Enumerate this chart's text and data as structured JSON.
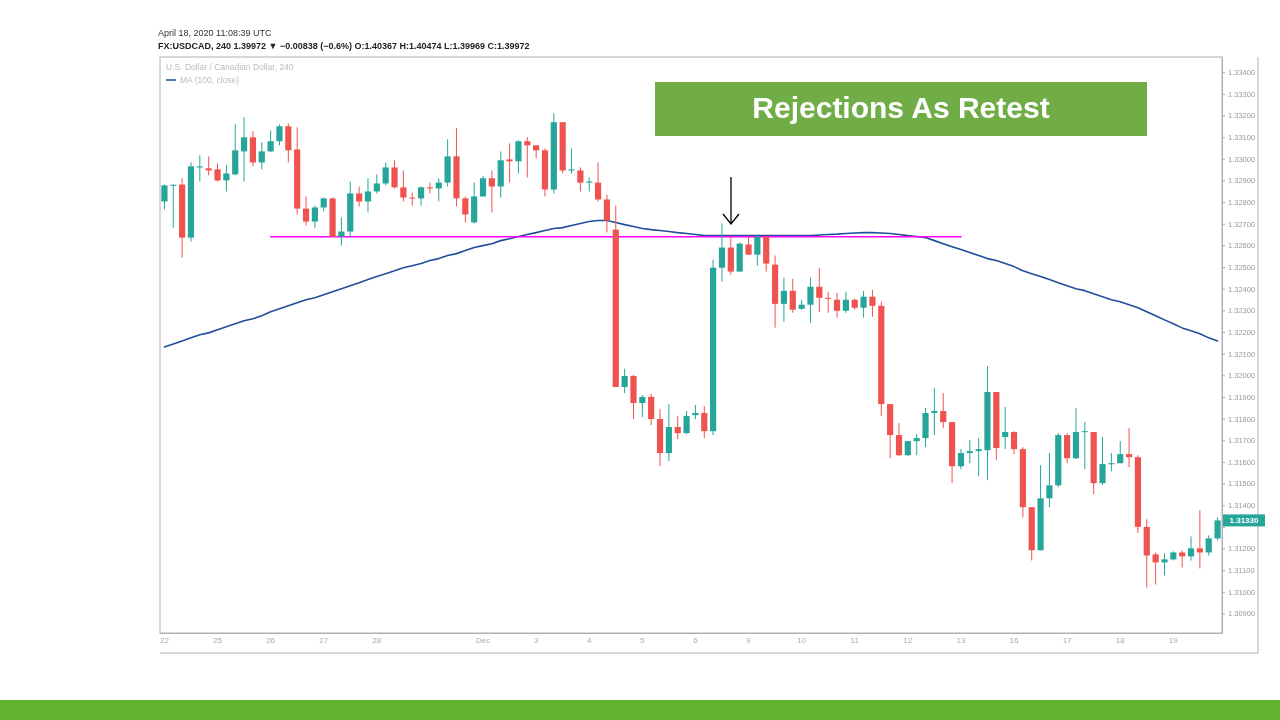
{
  "chart_data": {
    "type": "candlestick",
    "title": "Rejections As Retest",
    "subtitle": "FX:USDCAD, 240 1.39972 ▼ −0.00838 (−0.6%) O:1.40367 H:1.40474 L:1.39969 C:1.39972",
    "annotations": [
      "April 18, 2020 11:08:39 UTC",
      "U.S. Dollar / Canadian Dollar, 240",
      "1.31330"
    ],
    "categories": [
      "22",
      null,
      null,
      null,
      null,
      null,
      "25",
      null,
      null,
      null,
      null,
      null,
      "26",
      null,
      null,
      null,
      null,
      null,
      "27",
      null,
      null,
      null,
      null,
      null,
      "28",
      null,
      null,
      null,
      null,
      null,
      null,
      null,
      null,
      null,
      null,
      null,
      "Dec",
      null,
      null,
      null,
      null,
      null,
      "3",
      null,
      null,
      null,
      null,
      null,
      "4",
      null,
      null,
      null,
      null,
      null,
      "5",
      null,
      null,
      null,
      null,
      null,
      "6",
      null,
      null,
      null,
      null,
      null,
      "9",
      null,
      null,
      null,
      null,
      null,
      "10",
      null,
      null,
      null,
      null,
      null,
      "11",
      null,
      null,
      null,
      null,
      null,
      "12",
      null,
      null,
      null,
      null,
      null,
      "13",
      null,
      null,
      null,
      null,
      null,
      "16",
      null,
      null,
      null,
      null,
      null,
      "17",
      null,
      null,
      null,
      null,
      null,
      "18",
      null,
      null,
      null,
      null,
      null,
      "19",
      null,
      null,
      null,
      null,
      null
    ],
    "ohlc": [
      [
        1.32803,
        1.32881,
        1.32766,
        1.32877
      ],
      [
        1.32875,
        1.32881,
        1.32682,
        1.3288
      ],
      [
        1.32881,
        1.3291,
        1.32543,
        1.32636
      ],
      [
        1.32636,
        1.32983,
        1.32618,
        1.32965
      ],
      [
        1.3296,
        1.33016,
        1.32895,
        1.32965
      ],
      [
        1.32956,
        1.33011,
        1.32923,
        1.32946
      ],
      [
        1.32951,
        1.32979,
        1.32895,
        1.329
      ],
      [
        1.329,
        1.3297,
        1.32849,
        1.32932
      ],
      [
        1.32928,
        1.33159,
        1.32925,
        1.33039
      ],
      [
        1.33034,
        1.33192,
        1.32895,
        1.33099
      ],
      [
        1.33099,
        1.33127,
        1.32965,
        1.32983
      ],
      [
        1.32983,
        1.33076,
        1.32951,
        1.33034
      ],
      [
        1.33034,
        1.33131,
        1.3303,
        1.33081
      ],
      [
        1.33081,
        1.33159,
        1.33062,
        1.3315
      ],
      [
        1.3315,
        1.33164,
        1.32983,
        1.33039
      ],
      [
        1.33043,
        1.33145,
        1.32743,
        1.3277
      ],
      [
        1.3277,
        1.32826,
        1.32692,
        1.3271
      ],
      [
        1.3271,
        1.32784,
        1.32682,
        1.32775
      ],
      [
        1.32775,
        1.32821,
        1.32757,
        1.32817
      ],
      [
        1.32817,
        1.32821,
        1.3264,
        1.3264
      ],
      [
        1.3264,
        1.32729,
        1.32599,
        1.32664
      ],
      [
        1.32664,
        1.32895,
        1.3264,
        1.3284
      ],
      [
        1.3284,
        1.32872,
        1.3278,
        1.32803
      ],
      [
        1.32803,
        1.3291,
        1.32752,
        1.32849
      ],
      [
        1.32849,
        1.32928,
        1.3284,
        1.32886
      ],
      [
        1.32886,
        1.32983,
        1.32877,
        1.3296
      ],
      [
        1.3296,
        1.32993,
        1.32863,
        1.32868
      ],
      [
        1.32868,
        1.32946,
        1.32803,
        1.32821
      ],
      [
        1.32821,
        1.32844,
        1.32784,
        1.32817
      ],
      [
        1.32817,
        1.32872,
        1.32784,
        1.32868
      ],
      [
        1.32868,
        1.3289,
        1.3284,
        1.32863
      ],
      [
        1.32863,
        1.3291,
        1.32803,
        1.3289
      ],
      [
        1.3289,
        1.3309,
        1.32872,
        1.33011
      ],
      [
        1.33011,
        1.33141,
        1.3278,
        1.32817
      ],
      [
        1.32817,
        1.32826,
        1.32706,
        1.32743
      ],
      [
        1.32706,
        1.3289,
        1.32701,
        1.32826
      ],
      [
        1.32826,
        1.3292,
        1.32826,
        1.3291
      ],
      [
        1.3291,
        1.32946,
        1.32752,
        1.32872
      ],
      [
        1.32872,
        1.33034,
        1.32821,
        1.32993
      ],
      [
        1.32997,
        1.33071,
        1.3289,
        1.32988
      ],
      [
        1.32988,
        1.33085,
        1.32932,
        1.33081
      ],
      [
        1.33081,
        1.331,
        1.32914,
        1.33062
      ],
      [
        1.33062,
        1.33062,
        1.33002,
        1.33039
      ],
      [
        1.33039,
        1.33048,
        1.32826,
        1.32858
      ],
      [
        1.32858,
        1.3321,
        1.3284,
        1.33169
      ],
      [
        1.33169,
        1.33169,
        1.32932,
        1.32946
      ],
      [
        1.32946,
        1.33048,
        1.32932,
        1.32951
      ],
      [
        1.32946,
        1.3296,
        1.32849,
        1.3289
      ],
      [
        1.3289,
        1.32914,
        1.32849,
        1.32895
      ],
      [
        1.3289,
        1.32983,
        1.32803,
        1.32812
      ],
      [
        1.32812,
        1.32835,
        1.3266,
        1.32715
      ],
      [
        1.32673,
        1.32784,
        1.31946,
        1.31946
      ],
      [
        1.31946,
        1.3203,
        1.31918,
        1.31997
      ],
      [
        1.31997,
        1.32002,
        1.31798,
        1.31872
      ],
      [
        1.31872,
        1.31909,
        1.31807,
        1.319
      ],
      [
        1.319,
        1.31914,
        1.3177,
        1.31798
      ],
      [
        1.31798,
        1.31844,
        1.3158,
        1.31641
      ],
      [
        1.31641,
        1.31867,
        1.31604,
        1.31761
      ],
      [
        1.31761,
        1.31812,
        1.31705,
        1.31733
      ],
      [
        1.31733,
        1.31835,
        1.31728,
        1.31812
      ],
      [
        1.31816,
        1.31863,
        1.31798,
        1.31826
      ],
      [
        1.31826,
        1.31858,
        1.3171,
        1.31742
      ],
      [
        1.31742,
        1.32534,
        1.31724,
        1.32497
      ],
      [
        1.32497,
        1.32701,
        1.32432,
        1.3259
      ],
      [
        1.3259,
        1.3264,
        1.32465,
        1.32479
      ],
      [
        1.32479,
        1.32613,
        1.32479,
        1.32608
      ],
      [
        1.32604,
        1.3264,
        1.32557,
        1.32557
      ],
      [
        1.32557,
        1.3265,
        1.32506,
        1.3264
      ],
      [
        1.3264,
        1.3264,
        1.32479,
        1.32516
      ],
      [
        1.32511,
        1.32553,
        1.3222,
        1.3233
      ],
      [
        1.3233,
        1.32451,
        1.32247,
        1.3239
      ],
      [
        1.3239,
        1.32446,
        1.32289,
        1.32303
      ],
      [
        1.32307,
        1.32349,
        1.32303,
        1.32326
      ],
      [
        1.32326,
        1.32451,
        1.32243,
        1.32409
      ],
      [
        1.32409,
        1.32497,
        1.32293,
        1.32358
      ],
      [
        1.32358,
        1.32386,
        1.32289,
        1.32354
      ],
      [
        1.32349,
        1.32381,
        1.32266,
        1.32298
      ],
      [
        1.32298,
        1.32386,
        1.32289,
        1.32349
      ],
      [
        1.32349,
        1.32354,
        1.32303,
        1.32312
      ],
      [
        1.32312,
        1.3239,
        1.32266,
        1.32363
      ],
      [
        1.32363,
        1.32395,
        1.3227,
        1.32321
      ],
      [
        1.32321,
        1.3234,
        1.31812,
        1.31867
      ],
      [
        1.31867,
        1.31867,
        1.31617,
        1.31724
      ],
      [
        1.31724,
        1.31779,
        1.31627,
        1.31631
      ],
      [
        1.31631,
        1.31696,
        1.31627,
        1.31696
      ],
      [
        1.31696,
        1.31729,
        1.31631,
        1.3171
      ],
      [
        1.3171,
        1.31849,
        1.31668,
        1.31826
      ],
      [
        1.31826,
        1.31942,
        1.31724,
        1.31835
      ],
      [
        1.31835,
        1.31918,
        1.31756,
        1.31784
      ],
      [
        1.31784,
        1.31784,
        1.31502,
        1.3158
      ],
      [
        1.3158,
        1.31659,
        1.31567,
        1.31641
      ],
      [
        1.31641,
        1.31701,
        1.31594,
        1.3165
      ],
      [
        1.3165,
        1.3171,
        1.31534,
        1.31659
      ],
      [
        1.31654,
        1.32043,
        1.31516,
        1.31923
      ],
      [
        1.31923,
        1.31923,
        1.31608,
        1.31664
      ],
      [
        1.31715,
        1.31854,
        1.3166,
        1.31738
      ],
      [
        1.31738,
        1.31742,
        1.31636,
        1.31659
      ],
      [
        1.31659,
        1.31668,
        1.31344,
        1.31391
      ],
      [
        1.31391,
        1.31391,
        1.31145,
        1.31192
      ],
      [
        1.31192,
        1.31585,
        1.31192,
        1.31432
      ],
      [
        1.31432,
        1.31641,
        1.31391,
        1.31492
      ],
      [
        1.31492,
        1.31733,
        1.31483,
        1.31724
      ],
      [
        1.31724,
        1.31733,
        1.31594,
        1.31617
      ],
      [
        1.31617,
        1.31849,
        1.31613,
        1.31738
      ],
      [
        1.31738,
        1.31784,
        1.31567,
        1.31742
      ],
      [
        1.31738,
        1.31738,
        1.31451,
        1.31502
      ],
      [
        1.31502,
        1.31715,
        1.31493,
        1.3159
      ],
      [
        1.3159,
        1.31641,
        1.31557,
        1.31594
      ],
      [
        1.31594,
        1.31696,
        1.31594,
        1.31636
      ],
      [
        1.31636,
        1.31756,
        1.31576,
        1.31622
      ],
      [
        1.31622,
        1.31631,
        1.31272,
        1.313
      ],
      [
        1.313,
        1.31335,
        1.3102,
        1.31168
      ],
      [
        1.31173,
        1.31182,
        1.31034,
        1.31136
      ],
      [
        1.31136,
        1.31178,
        1.31076,
        1.3115
      ],
      [
        1.3115,
        1.31187,
        1.31145,
        1.31182
      ],
      [
        1.31182,
        1.31192,
        1.31113,
        1.31164
      ],
      [
        1.31164,
        1.31256,
        1.31145,
        1.31201
      ],
      [
        1.31201,
        1.31377,
        1.31108,
        1.31182
      ],
      [
        1.31182,
        1.31261,
        1.31168,
        1.31247
      ],
      [
        1.31247,
        1.31344,
        1.31238,
        1.3133
      ]
    ],
    "colors": [
      "#26a69a",
      "#26a69a",
      "#ef5350",
      "#26a69a",
      "#26a69a",
      "#ef5350",
      "#ef5350",
      "#26a69a",
      "#26a69a",
      "#26a69a",
      "#ef5350",
      "#26a69a",
      "#26a69a",
      "#26a69a",
      "#ef5350",
      "#ef5350",
      "#ef5350",
      "#26a69a",
      "#26a69a",
      "#ef5350",
      "#26a69a",
      "#26a69a",
      "#ef5350",
      "#26a69a",
      "#26a69a",
      "#26a69a",
      "#ef5350",
      "#ef5350",
      "#ef5350",
      "#26a69a",
      "#ef5350",
      "#26a69a",
      "#26a69a",
      "#ef5350",
      "#ef5350",
      "#26a69a",
      "#26a69a",
      "#ef5350",
      "#26a69a",
      "#ef5350",
      "#26a69a",
      "#ef5350",
      "#ef5350",
      "#ef5350",
      "#26a69a",
      "#ef5350",
      "#26a69a",
      "#ef5350",
      "#26a69a",
      "#ef5350",
      "#ef5350",
      "#ef5350",
      "#26a69a",
      "#ef5350",
      "#26a69a",
      "#ef5350",
      "#ef5350",
      "#26a69a",
      "#ef5350",
      "#26a69a",
      "#26a69a",
      "#ef5350",
      "#26a69a",
      "#26a69a",
      "#ef5350",
      "#26a69a",
      "#ef5350",
      "#26a69a",
      "#ef5350",
      "#ef5350",
      "#26a69a",
      "#ef5350",
      "#26a69a",
      "#26a69a",
      "#ef5350",
      "#ef5350",
      "#ef5350",
      "#26a69a",
      "#ef5350",
      "#26a69a",
      "#ef5350",
      "#ef5350",
      "#ef5350",
      "#ef5350",
      "#26a69a",
      "#26a69a",
      "#26a69a",
      "#26a69a",
      "#ef5350",
      "#ef5350",
      "#26a69a",
      "#26a69a",
      "#26a69a",
      "#26a69a",
      "#ef5350",
      "#26a69a",
      "#ef5350",
      "#ef5350",
      "#ef5350",
      "#26a69a",
      "#26a69a",
      "#26a69a",
      "#ef5350",
      "#26a69a",
      "#26a69a",
      "#ef5350",
      "#26a69a",
      "#26a69a",
      "#26a69a",
      "#ef5350",
      "#ef5350",
      "#ef5350",
      "#ef5350",
      "#26a69a",
      "#26a69a",
      "#ef5350",
      "#26a69a",
      "#ef5350",
      "#26a69a",
      "#26a69a"
    ],
    "series": [
      {
        "name": "MA (100, close)",
        "type": "line",
        "color": "#1f4e9c",
        "values": [
          1.32131,
          1.32145,
          1.32159,
          1.32173,
          1.32187,
          1.32196,
          1.3221,
          1.32224,
          1.32238,
          1.32252,
          1.32261,
          1.32275,
          1.32294,
          1.32307,
          1.32321,
          1.32335,
          1.32349,
          1.32358,
          1.32372,
          1.32386,
          1.324,
          1.32414,
          1.32428,
          1.32442,
          1.32456,
          1.32469,
          1.32483,
          1.32497,
          1.32506,
          1.32516,
          1.3253,
          1.32539,
          1.32553,
          1.32562,
          1.32576,
          1.3259,
          1.32599,
          1.32608,
          1.32622,
          1.32631,
          1.32641,
          1.3265,
          1.32659,
          1.32669,
          1.32678,
          1.32682,
          1.32692,
          1.32701,
          1.3271,
          1.32715,
          1.32715,
          1.32706,
          1.32696,
          1.32687,
          1.32678,
          1.32673,
          1.32669,
          1.32664,
          1.32659,
          1.32655,
          1.3265,
          1.32645,
          1.32645,
          1.32645,
          1.32645,
          1.32645,
          1.32645,
          1.32645,
          1.32645,
          1.32645,
          1.32645,
          1.32645,
          1.32645,
          1.32645,
          1.32648,
          1.3265,
          1.32652,
          1.32655,
          1.32657,
          1.32659,
          1.32659,
          1.32657,
          1.32655,
          1.3265,
          1.32645,
          1.32641,
          1.32636,
          1.32622,
          1.32608,
          1.32594,
          1.32581,
          1.32567,
          1.32553,
          1.32539,
          1.3253,
          1.32516,
          1.32502,
          1.32483,
          1.32469,
          1.32456,
          1.32442,
          1.32428,
          1.32414,
          1.324,
          1.32391,
          1.32377,
          1.32363,
          1.32349,
          1.3234,
          1.32326,
          1.32312,
          1.32294,
          1.32275,
          1.32256,
          1.32238,
          1.32219,
          1.32206,
          1.32192,
          1.32173,
          1.32159
        ]
      },
      {
        "type": "line",
        "color": "#ff00ff",
        "values": [
          null,
          null,
          null,
          null,
          null,
          null,
          null,
          null,
          null,
          null,
          null,
          null,
          1.3264,
          1.3264,
          1.3264,
          1.3264,
          1.3264,
          1.3264,
          1.3264,
          1.3264,
          1.3264,
          1.3264,
          1.3264,
          1.3264,
          1.3264,
          1.3264,
          1.3264,
          1.3264,
          1.3264,
          1.3264,
          1.3264,
          1.3264,
          1.3264,
          1.3264,
          1.3264,
          1.3264,
          1.3264,
          1.3264,
          1.3264,
          1.3264,
          1.3264,
          1.3264,
          1.3264,
          1.3264,
          1.3264,
          1.3264,
          1.3264,
          1.3264,
          1.3264,
          1.3264,
          1.3264,
          1.3264,
          1.3264,
          1.3264,
          1.3264,
          1.3264,
          1.3264,
          1.3264,
          1.3264,
          1.3264,
          1.3264,
          1.3264,
          1.3264,
          1.3264,
          1.3264,
          1.3264,
          1.3264,
          1.3264,
          1.3264,
          1.3264,
          1.3264,
          1.3264,
          1.3264,
          1.3264,
          1.3264,
          1.3264,
          1.3264,
          1.3264,
          1.3264,
          1.3264,
          1.3264,
          1.3264,
          1.3264,
          1.3264,
          1.3264,
          1.3264,
          1.3264,
          1.3264,
          1.3264,
          1.3264,
          1.3264,
          null,
          null,
          null,
          null,
          null,
          null,
          null,
          null,
          null,
          null,
          null,
          null,
          null,
          null,
          null,
          null,
          null,
          null,
          null,
          null,
          null,
          null,
          null,
          null,
          null,
          null,
          null,
          null,
          null
        ]
      }
    ],
    "ylim": [
      1.3081,
      1.3347
    ],
    "yticks": [
      {
        "value": 1.309,
        "label": "1.30900"
      },
      {
        "value": 1.31,
        "label": "1.31000"
      },
      {
        "value": 1.311,
        "label": "1.31100"
      },
      {
        "value": 1.312,
        "label": "1.31200"
      },
      {
        "value": 1.313,
        "label": null
      },
      {
        "value": 1.314,
        "label": "1.31400"
      },
      {
        "value": 1.315,
        "label": "1.31500"
      },
      {
        "value": 1.316,
        "label": "1.31600"
      },
      {
        "value": 1.317,
        "label": "1.31700"
      },
      {
        "value": 1.318,
        "label": "1.31800"
      },
      {
        "value": 1.319,
        "label": "1.31900"
      },
      {
        "value": 1.32,
        "label": "1.32000"
      },
      {
        "value": 1.321,
        "label": "1.32100"
      },
      {
        "value": 1.322,
        "label": "1.32200"
      },
      {
        "value": 1.323,
        "label": "1.32300"
      },
      {
        "value": 1.324,
        "label": "1.32400"
      },
      {
        "value": 1.325,
        "label": "1.32500"
      },
      {
        "value": 1.326,
        "label": "1.32600"
      },
      {
        "value": 1.327,
        "label": "1.32700"
      },
      {
        "value": 1.328,
        "label": "1.32800"
      },
      {
        "value": 1.329,
        "label": "1.32900"
      },
      {
        "value": 1.33,
        "label": "1.33000"
      },
      {
        "value": 1.331,
        "label": "1.33100"
      },
      {
        "value": 1.332,
        "label": "1.33200"
      },
      {
        "value": 1.333,
        "label": "1.33300"
      },
      {
        "value": 1.334,
        "label": "1.33400"
      }
    ],
    "legend": "top left"
  }
}
